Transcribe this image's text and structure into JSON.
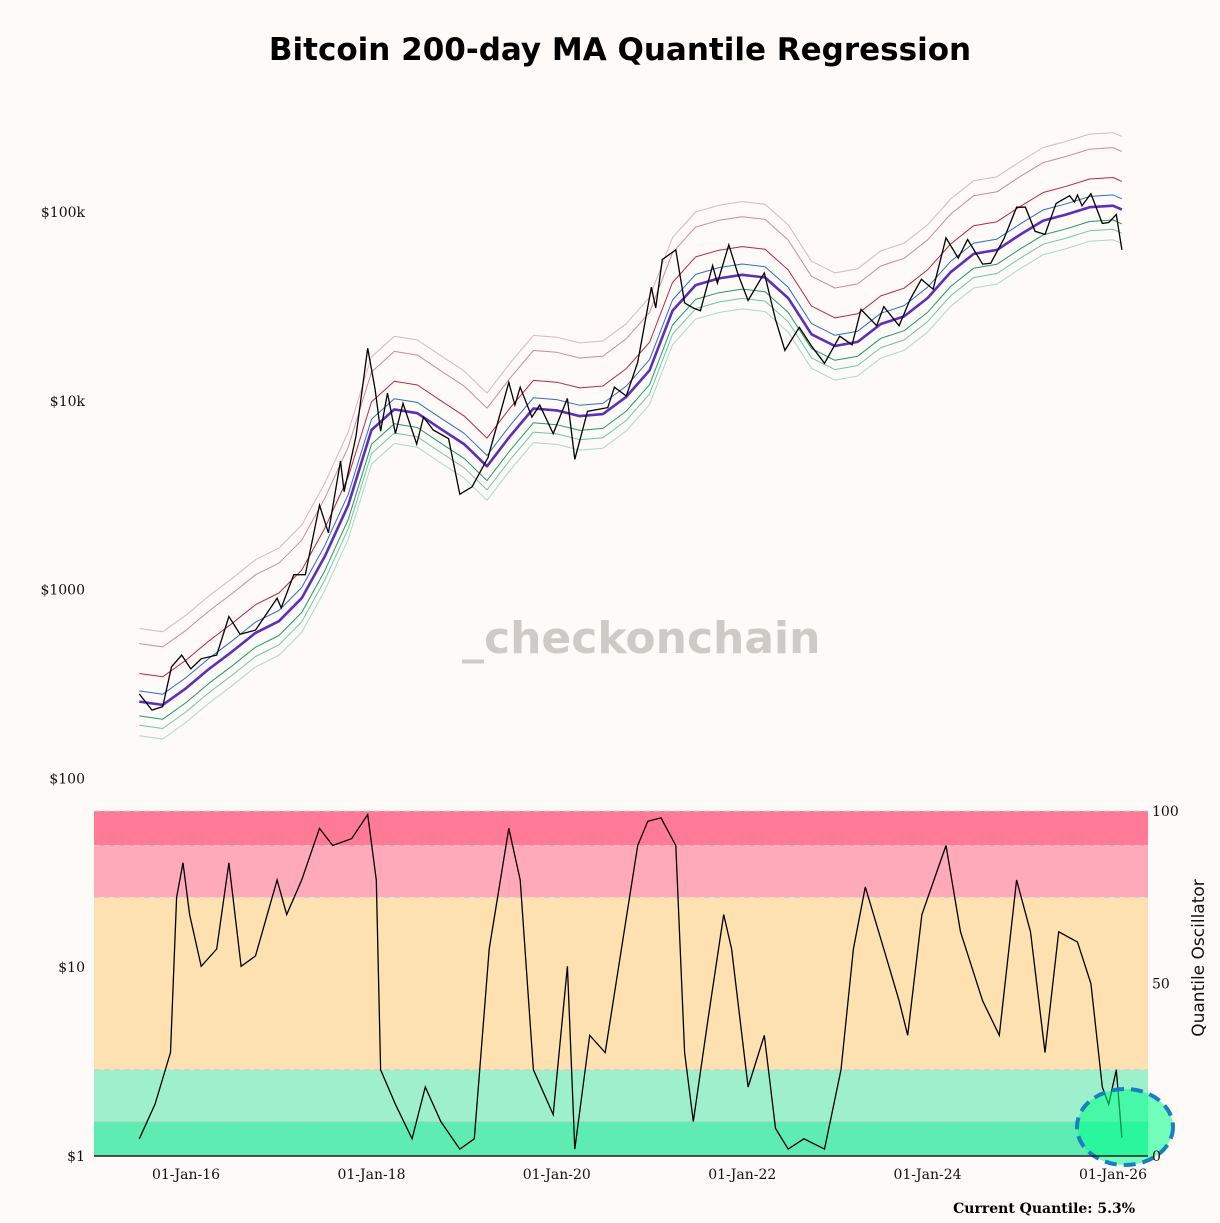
{
  "chart_data": [
    {
      "type": "line",
      "title": "Bitcoin 200-day MA Quantile Regression",
      "yscale": "log",
      "ylim": [
        1,
        300000
      ],
      "y_ticks": [
        {
          "value": 100000,
          "label": "$100k"
        },
        {
          "value": 10000,
          "label": "$10k"
        },
        {
          "value": 1000,
          "label": "$1000"
        },
        {
          "value": 100,
          "label": "$100"
        },
        {
          "value": 10,
          "label": "$10"
        },
        {
          "value": 1,
          "label": "$1"
        }
      ],
      "x_ticks": [
        "01-Jan-16",
        "01-Jan-18",
        "01-Jan-20",
        "01-Jan-22",
        "01-Jan-24",
        "01-Jan-26"
      ],
      "x_tick_dates": [
        "2016-01-01",
        "2018-01-01",
        "2020-01-01",
        "2022-01-01",
        "2024-01-01",
        "2026-01-01"
      ],
      "price": [
        [
          "2015-07-01",
          280
        ],
        [
          "2015-08-20",
          230
        ],
        [
          "2015-10-01",
          240
        ],
        [
          "2015-11-05",
          390
        ],
        [
          "2015-12-15",
          450
        ],
        [
          "2016-01-20",
          380
        ],
        [
          "2016-03-01",
          430
        ],
        [
          "2016-05-01",
          450
        ],
        [
          "2016-06-18",
          720
        ],
        [
          "2016-08-01",
          580
        ],
        [
          "2016-10-01",
          610
        ],
        [
          "2016-12-25",
          900
        ],
        [
          "2017-01-10",
          800
        ],
        [
          "2017-03-01",
          1200
        ],
        [
          "2017-04-15",
          1200
        ],
        [
          "2017-06-10",
          2800
        ],
        [
          "2017-07-15",
          2000
        ],
        [
          "2017-09-01",
          4800
        ],
        [
          "2017-09-15",
          3300
        ],
        [
          "2017-11-01",
          6500
        ],
        [
          "2017-12-17",
          19000
        ],
        [
          "2018-01-15",
          11500
        ],
        [
          "2018-02-06",
          6900
        ],
        [
          "2018-03-05",
          11000
        ],
        [
          "2018-04-05",
          6700
        ],
        [
          "2018-05-05",
          9700
        ],
        [
          "2018-06-28",
          5900
        ],
        [
          "2018-07-25",
          8200
        ],
        [
          "2018-09-01",
          7000
        ],
        [
          "2018-11-01",
          6300
        ],
        [
          "2018-12-15",
          3200
        ],
        [
          "2019-02-01",
          3500
        ],
        [
          "2019-04-05",
          5000
        ],
        [
          "2019-06-26",
          12500
        ],
        [
          "2019-07-20",
          9500
        ],
        [
          "2019-08-10",
          11800
        ],
        [
          "2019-09-25",
          8200
        ],
        [
          "2019-10-26",
          9500
        ],
        [
          "2019-12-18",
          6700
        ],
        [
          "2020-02-12",
          10300
        ],
        [
          "2020-03-12",
          4900
        ],
        [
          "2020-05-01",
          8800
        ],
        [
          "2020-07-20",
          9200
        ],
        [
          "2020-08-15",
          11800
        ],
        [
          "2020-10-01",
          10600
        ],
        [
          "2020-11-15",
          16000
        ],
        [
          "2021-01-08",
          40000
        ],
        [
          "2021-01-25",
          31000
        ],
        [
          "2021-02-20",
          56000
        ],
        [
          "2021-04-14",
          63000
        ],
        [
          "2021-05-19",
          33000
        ],
        [
          "2021-06-22",
          31000
        ],
        [
          "2021-07-20",
          30000
        ],
        [
          "2021-09-06",
          52000
        ],
        [
          "2021-09-25",
          42000
        ],
        [
          "2021-11-09",
          67000
        ],
        [
          "2021-12-15",
          47000
        ],
        [
          "2022-01-24",
          34000
        ],
        [
          "2022-03-29",
          47500
        ],
        [
          "2022-05-12",
          27000
        ],
        [
          "2022-06-18",
          18500
        ],
        [
          "2022-08-14",
          24500
        ],
        [
          "2022-10-01",
          19500
        ],
        [
          "2022-11-21",
          15800
        ],
        [
          "2023-01-20",
          22000
        ],
        [
          "2023-03-10",
          19800
        ],
        [
          "2023-04-14",
          30500
        ],
        [
          "2023-06-15",
          25000
        ],
        [
          "2023-07-13",
          31500
        ],
        [
          "2023-09-11",
          25000
        ],
        [
          "2023-10-25",
          34500
        ],
        [
          "2023-12-08",
          44000
        ],
        [
          "2024-01-23",
          39000
        ],
        [
          "2024-03-14",
          73000
        ],
        [
          "2024-05-01",
          57000
        ],
        [
          "2024-06-07",
          71500
        ],
        [
          "2024-08-05",
          53000
        ],
        [
          "2024-09-06",
          53500
        ],
        [
          "2024-10-29",
          72500
        ],
        [
          "2024-12-17",
          106000
        ],
        [
          "2025-01-21",
          106000
        ],
        [
          "2025-02-28",
          79000
        ],
        [
          "2025-04-08",
          76000
        ],
        [
          "2025-05-22",
          111000
        ],
        [
          "2025-07-14",
          122000
        ],
        [
          "2025-08-02",
          113000
        ],
        [
          "2025-08-14",
          123000
        ],
        [
          "2025-09-01",
          108000
        ],
        [
          "2025-10-06",
          125000
        ],
        [
          "2025-11-20",
          87000
        ],
        [
          "2025-12-15",
          88000
        ],
        [
          "2026-01-14",
          97000
        ],
        [
          "2026-02-05",
          63000
        ]
      ],
      "moving_average_200d": [
        [
          "2015-07-01",
          255
        ],
        [
          "2015-10-01",
          245
        ],
        [
          "2016-01-01",
          300
        ],
        [
          "2016-04-01",
          380
        ],
        [
          "2016-07-01",
          470
        ],
        [
          "2016-10-01",
          590
        ],
        [
          "2017-01-01",
          680
        ],
        [
          "2017-04-01",
          900
        ],
        [
          "2017-07-01",
          1500
        ],
        [
          "2017-10-01",
          2800
        ],
        [
          "2018-01-01",
          7000
        ],
        [
          "2018-04-01",
          9000
        ],
        [
          "2018-07-01",
          8600
        ],
        [
          "2018-10-01",
          7100
        ],
        [
          "2019-01-01",
          5900
        ],
        [
          "2019-04-01",
          4500
        ],
        [
          "2019-07-01",
          6500
        ],
        [
          "2019-10-01",
          9100
        ],
        [
          "2020-01-01",
          8900
        ],
        [
          "2020-04-01",
          8300
        ],
        [
          "2020-07-01",
          8500
        ],
        [
          "2020-10-01",
          10500
        ],
        [
          "2021-01-01",
          14500
        ],
        [
          "2021-04-01",
          30000
        ],
        [
          "2021-07-01",
          41000
        ],
        [
          "2021-10-01",
          44500
        ],
        [
          "2022-01-01",
          46500
        ],
        [
          "2022-04-01",
          45000
        ],
        [
          "2022-07-01",
          35000
        ],
        [
          "2022-10-01",
          22500
        ],
        [
          "2023-01-01",
          19500
        ],
        [
          "2023-04-01",
          20500
        ],
        [
          "2023-07-01",
          25500
        ],
        [
          "2023-10-01",
          28000
        ],
        [
          "2024-01-01",
          35000
        ],
        [
          "2024-04-01",
          48000
        ],
        [
          "2024-07-01",
          60000
        ],
        [
          "2024-10-01",
          63000
        ],
        [
          "2025-01-01",
          76000
        ],
        [
          "2025-04-01",
          90000
        ],
        [
          "2025-07-01",
          97000
        ],
        [
          "2025-10-01",
          106000
        ],
        [
          "2026-01-01",
          108000
        ],
        [
          "2026-02-05",
          103000
        ]
      ],
      "quantile_bands": [
        {
          "multiplier": 2.44,
          "color": "#d9b8c0"
        },
        {
          "multiplier": 2.03,
          "color": "#d08a9a"
        },
        {
          "multiplier": 1.41,
          "color": "#b8274a"
        },
        {
          "multiplier": 1.14,
          "color": "#2a6fc8"
        },
        {
          "multiplier": 1.0,
          "color": "#5b2fb8"
        },
        {
          "multiplier": 0.84,
          "color": "#1f9a6a"
        },
        {
          "multiplier": 0.75,
          "color": "#6cc9a0"
        },
        {
          "multiplier": 0.66,
          "color": "#a8dcc4"
        }
      ],
      "price_color": "#000000"
    },
    {
      "type": "line",
      "ylabel": "Quantile Oscillator",
      "ylim": [
        0,
        100
      ],
      "y_ticks": [
        "100",
        "50",
        "0"
      ],
      "zones": [
        {
          "from": 90,
          "to": 100,
          "color": "#ff7a96"
        },
        {
          "from": 75,
          "to": 90,
          "color": "#ffaabb"
        },
        {
          "from": 25,
          "to": 75,
          "color": "#fde1b0"
        },
        {
          "from": 10,
          "to": 25,
          "color": "#9ef0cc"
        },
        {
          "from": 0,
          "to": 10,
          "color": "#5eecb2"
        }
      ],
      "oscillator": [
        [
          "2015-07-01",
          5
        ],
        [
          "2015-09-01",
          15
        ],
        [
          "2015-11-01",
          30
        ],
        [
          "2015-11-25",
          75
        ],
        [
          "2015-12-20",
          85
        ],
        [
          "2016-01-15",
          70
        ],
        [
          "2016-03-01",
          55
        ],
        [
          "2016-05-01",
          60
        ],
        [
          "2016-06-18",
          85
        ],
        [
          "2016-08-05",
          55
        ],
        [
          "2016-10-01",
          58
        ],
        [
          "2016-12-25",
          80
        ],
        [
          "2017-02-01",
          70
        ],
        [
          "2017-04-01",
          80
        ],
        [
          "2017-06-10",
          95
        ],
        [
          "2017-08-01",
          90
        ],
        [
          "2017-10-15",
          92
        ],
        [
          "2017-12-17",
          99
        ],
        [
          "2018-01-20",
          80
        ],
        [
          "2018-02-06",
          25
        ],
        [
          "2018-04-05",
          15
        ],
        [
          "2018-06-10",
          5
        ],
        [
          "2018-08-01",
          20
        ],
        [
          "2018-10-01",
          10
        ],
        [
          "2018-12-15",
          2
        ],
        [
          "2019-02-10",
          5
        ],
        [
          "2019-04-10",
          60
        ],
        [
          "2019-06-26",
          95
        ],
        [
          "2019-08-10",
          80
        ],
        [
          "2019-10-01",
          25
        ],
        [
          "2019-12-18",
          12
        ],
        [
          "2020-02-12",
          55
        ],
        [
          "2020-03-12",
          2
        ],
        [
          "2020-05-10",
          35
        ],
        [
          "2020-07-10",
          30
        ],
        [
          "2020-09-01",
          55
        ],
        [
          "2020-11-15",
          90
        ],
        [
          "2020-12-25",
          97
        ],
        [
          "2021-02-15",
          98
        ],
        [
          "2021-04-14",
          90
        ],
        [
          "2021-05-19",
          30
        ],
        [
          "2021-06-22",
          10
        ],
        [
          "2021-08-20",
          40
        ],
        [
          "2021-10-20",
          70
        ],
        [
          "2021-11-20",
          60
        ],
        [
          "2022-01-24",
          20
        ],
        [
          "2022-03-29",
          35
        ],
        [
          "2022-05-12",
          8
        ],
        [
          "2022-07-01",
          2
        ],
        [
          "2022-09-01",
          5
        ],
        [
          "2022-11-21",
          2
        ],
        [
          "2023-01-25",
          25
        ],
        [
          "2023-03-15",
          60
        ],
        [
          "2023-05-01",
          78
        ],
        [
          "2023-07-13",
          60
        ],
        [
          "2023-09-11",
          45
        ],
        [
          "2023-10-15",
          35
        ],
        [
          "2023-12-10",
          70
        ],
        [
          "2024-03-14",
          90
        ],
        [
          "2024-05-10",
          65
        ],
        [
          "2024-08-05",
          45
        ],
        [
          "2024-10-10",
          35
        ],
        [
          "2024-12-17",
          80
        ],
        [
          "2025-02-10",
          65
        ],
        [
          "2025-04-08",
          30
        ],
        [
          "2025-06-01",
          65
        ],
        [
          "2025-08-14",
          62
        ],
        [
          "2025-10-06",
          50
        ],
        [
          "2025-11-20",
          20
        ],
        [
          "2025-12-15",
          15
        ],
        [
          "2026-01-14",
          25
        ],
        [
          "2026-02-05",
          5.3
        ]
      ],
      "highlight": {
        "color": "#00ff88",
        "border_color": "#1a7fc0"
      }
    }
  ],
  "watermark": "_checkonchain",
  "footer": {
    "current_quantile": "Current Quantile: 5.3%"
  }
}
